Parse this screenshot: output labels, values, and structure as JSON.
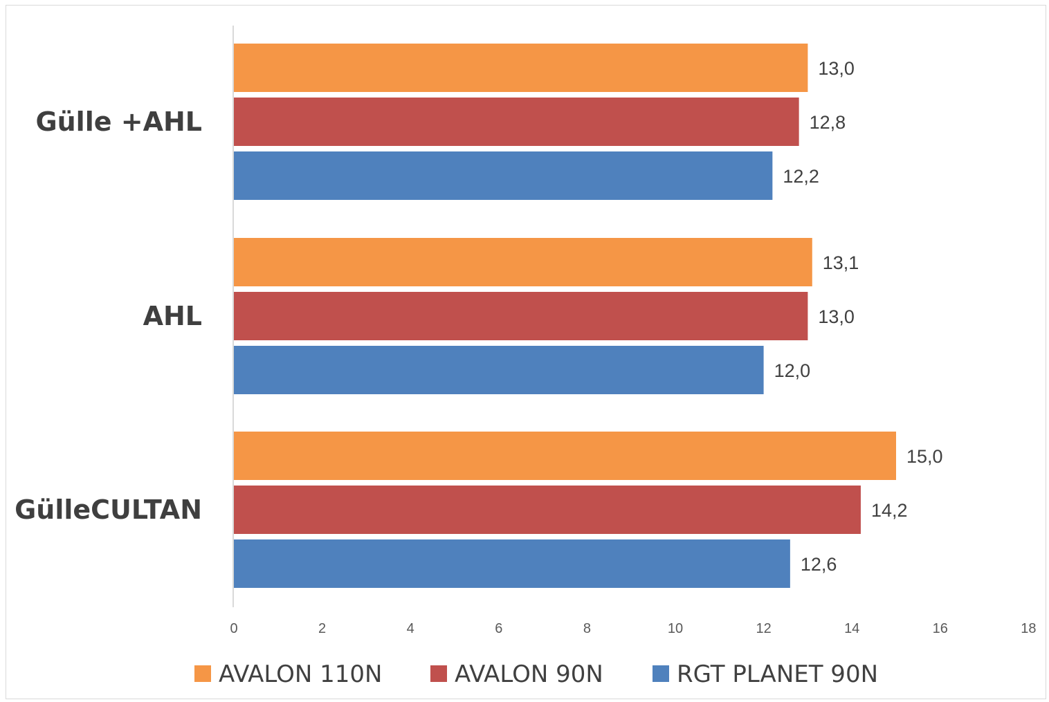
{
  "chart_data": {
    "type": "bar",
    "orientation": "horizontal",
    "categories": [
      "Gülle +AHL",
      "AHL",
      "GülleCULTAN"
    ],
    "series": [
      {
        "name": "AVALON 110N",
        "color": "#F59646",
        "values": [
          13.0,
          13.1,
          15.0
        ],
        "labels": [
          "13,0",
          "13,1",
          "15,0"
        ]
      },
      {
        "name": "AVALON 90N",
        "color": "#C0504D",
        "values": [
          12.8,
          13.0,
          14.2
        ],
        "labels": [
          "12,8",
          "13,0",
          "14,2"
        ]
      },
      {
        "name": "RGT PLANET 90N",
        "color": "#4F81BD",
        "values": [
          12.2,
          12.0,
          12.6
        ],
        "labels": [
          "12,2",
          "12,0",
          "12,6"
        ]
      }
    ],
    "xlim": [
      0,
      18
    ],
    "x_ticks": [
      "0",
      "2",
      "4",
      "6",
      "8",
      "10",
      "12",
      "14",
      "16",
      "18"
    ],
    "grid": false,
    "legend_position": "bottom",
    "title": "",
    "xlabel": "",
    "ylabel": ""
  }
}
